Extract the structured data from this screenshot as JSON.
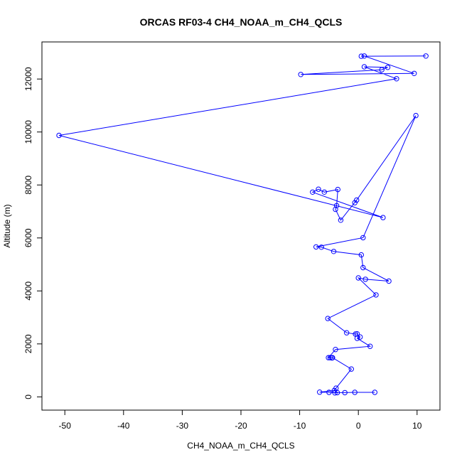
{
  "chart_data": {
    "type": "line",
    "title": "ORCAS RF03-4 CH4_NOAA_m_CH4_QCLS",
    "xlabel": "CH4_NOAA_m_CH4_QCLS",
    "ylabel": "Altitude (m)",
    "xlim": [
      -53.9,
      13.9
    ],
    "ylim": [
      -500,
      13400
    ],
    "x_ticks": [
      -50,
      -40,
      -30,
      -20,
      -10,
      0,
      10
    ],
    "y_ticks": [
      0,
      2000,
      4000,
      6000,
      8000,
      10000,
      12000
    ],
    "grid": false,
    "series": [
      {
        "color": "#0000ff",
        "marker": "open-circle",
        "points": [
          [
            11.5,
            12870
          ],
          [
            0.5,
            12860
          ],
          [
            1.0,
            12870
          ],
          [
            9.5,
            12210
          ],
          [
            -9.8,
            12170
          ],
          [
            4.0,
            12350
          ],
          [
            5.0,
            12440
          ],
          [
            1.0,
            12460
          ],
          [
            6.5,
            12010
          ],
          [
            -51.0,
            9870
          ],
          [
            4.2,
            6770
          ],
          [
            -7.8,
            7730
          ],
          [
            -6.8,
            7840
          ],
          [
            -5.8,
            7730
          ],
          [
            -3.5,
            7830
          ],
          [
            -3.7,
            7220
          ],
          [
            -3.9,
            7080
          ],
          [
            -3.0,
            6670
          ],
          [
            -0.3,
            7430
          ],
          [
            -0.6,
            7330
          ],
          [
            9.8,
            10620
          ],
          [
            0.8,
            6010
          ],
          [
            -7.2,
            5660
          ],
          [
            -6.3,
            5650
          ],
          [
            -4.2,
            5490
          ],
          [
            0.5,
            5360
          ],
          [
            0.8,
            4880
          ],
          [
            5.2,
            4370
          ],
          [
            1.2,
            4440
          ],
          [
            0.0,
            4490
          ],
          [
            3.0,
            3850
          ],
          [
            -5.2,
            2960
          ],
          [
            -2.0,
            2420
          ],
          [
            -0.5,
            2370
          ],
          [
            -0.2,
            2380
          ],
          [
            0.3,
            2260
          ],
          [
            -0.2,
            2210
          ],
          [
            2.0,
            1910
          ],
          [
            -3.9,
            1790
          ],
          [
            -5.1,
            1480
          ],
          [
            -4.8,
            1480
          ],
          [
            -4.5,
            1470
          ],
          [
            -4.4,
            1480
          ],
          [
            -1.2,
            1050
          ],
          [
            -3.8,
            330
          ],
          [
            -4.1,
            240
          ],
          [
            -6.6,
            180
          ],
          [
            -5.0,
            170
          ],
          [
            -4.0,
            150
          ],
          [
            -3.6,
            160
          ],
          [
            -2.3,
            160
          ],
          [
            -0.6,
            170
          ],
          [
            2.8,
            170
          ]
        ]
      }
    ]
  }
}
